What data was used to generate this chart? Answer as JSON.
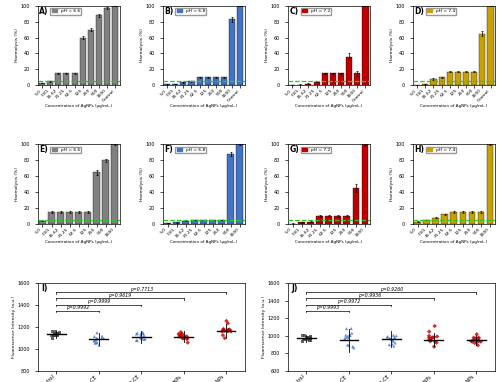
{
  "bar_categories": [
    "5.0",
    "7.81",
    "15.62",
    "31.25",
    "62.5",
    "125",
    "250",
    "500",
    "1000",
    "Control"
  ],
  "panel_A": {
    "label": "pH = 6.6",
    "color": "#808080",
    "values": [
      3.0,
      5.0,
      15.0,
      15.0,
      15.0,
      60.0,
      70.0,
      88.0,
      97.0,
      100.0
    ],
    "errors": [
      0.3,
      0.5,
      0.8,
      0.8,
      0.8,
      2.0,
      2.0,
      2.0,
      1.0,
      0.5
    ],
    "n_bars": 10
  },
  "panel_B": {
    "label": "pH = 6.8",
    "color": "#4472C4",
    "values": [
      1.0,
      1.5,
      3.5,
      5.0,
      10.0,
      10.0,
      10.0,
      10.0,
      83.0,
      100.0
    ],
    "errors": [
      0.2,
      0.3,
      0.5,
      0.8,
      0.5,
      0.5,
      0.5,
      0.5,
      3.0,
      0.5
    ],
    "n_bars": 10
  },
  "panel_C": {
    "label": "pH = 7.2",
    "color": "#C00000",
    "values": [
      0.5,
      0.8,
      2.0,
      4.0,
      15.0,
      15.0,
      15.0,
      35.0,
      15.0,
      100.0
    ],
    "errors": [
      0.1,
      0.2,
      0.3,
      0.5,
      0.8,
      0.8,
      0.8,
      5.0,
      3.0,
      0.5
    ],
    "n_bars": 10
  },
  "panel_D": {
    "label": "pH = 7.4",
    "color": "#C8A000",
    "values": [
      0.5,
      1.0,
      8.0,
      10.0,
      17.0,
      17.0,
      17.0,
      17.0,
      65.0,
      100.0
    ],
    "errors": [
      0.2,
      0.3,
      0.8,
      0.8,
      0.8,
      0.8,
      0.8,
      0.8,
      3.0,
      0.5
    ],
    "n_bars": 10
  },
  "panel_E": {
    "label": "pH = 6.6",
    "color": "#808080",
    "values": [
      4.0,
      15.0,
      15.0,
      15.0,
      15.0,
      15.0,
      65.0,
      80.0,
      100.0
    ],
    "errors": [
      0.5,
      0.8,
      0.8,
      0.8,
      0.8,
      0.8,
      3.0,
      2.0,
      1.0
    ],
    "n_bars": 9,
    "cats": [
      "5.0",
      "7.81",
      "15.62",
      "31.25",
      "62.5",
      "125",
      "250",
      "500",
      "1000"
    ]
  },
  "panel_F": {
    "label": "pH = 6.8",
    "color": "#4472C4",
    "values": [
      1.0,
      2.0,
      4.0,
      5.0,
      5.0,
      5.0,
      5.0,
      88.0,
      100.0
    ],
    "errors": [
      0.2,
      0.5,
      0.5,
      0.5,
      0.5,
      0.5,
      0.5,
      3.0,
      1.0
    ],
    "n_bars": 9,
    "cats": [
      "5.0",
      "7.81",
      "15.62",
      "31.25",
      "62.5",
      "125",
      "250",
      "500",
      "1000"
    ]
  },
  "panel_G": {
    "label": "pH = 7.2",
    "color": "#C00000",
    "values": [
      0.5,
      2.0,
      3.0,
      10.0,
      10.0,
      10.0,
      10.0,
      45.0,
      100.0
    ],
    "errors": [
      0.2,
      0.5,
      0.5,
      0.8,
      0.8,
      0.8,
      0.8,
      5.0,
      1.0
    ],
    "n_bars": 9,
    "cats": [
      "5.0",
      "7.81",
      "15.62",
      "31.25",
      "62.5",
      "125",
      "250",
      "500",
      "1000"
    ]
  },
  "panel_H": {
    "label": "pH = 7.4",
    "color": "#C8A000",
    "values": [
      3.0,
      5.0,
      8.0,
      12.0,
      15.0,
      15.0,
      15.0,
      15.0,
      100.0
    ],
    "errors": [
      0.5,
      0.5,
      0.8,
      0.8,
      0.8,
      0.8,
      0.8,
      0.8,
      1.0
    ],
    "n_bars": 9,
    "cats": [
      "5.0",
      "7.81",
      "15.62",
      "31.25",
      "62.5",
      "125",
      "250",
      "500",
      "1000"
    ]
  },
  "scatter_I": {
    "p_values": [
      "p=0.9992",
      "p=0.9999",
      "p=0.9619",
      "p=0.7713"
    ],
    "groups": [
      "Control",
      "AIL-CE",
      "AIB-CE",
      "AIL-AgNPs",
      "AIB-AgNPs"
    ],
    "colors": [
      "#404040",
      "#4472C4",
      "#4472C4",
      "#C00000",
      "#C00000"
    ],
    "markers": [
      "s",
      "^",
      "^",
      "D",
      "D"
    ],
    "means": [
      1130,
      1090,
      1110,
      1110,
      1165
    ],
    "stds": [
      35,
      55,
      55,
      50,
      65
    ],
    "ylim": [
      800,
      1600
    ],
    "yticks": [
      800,
      1000,
      1200,
      1400,
      1600
    ]
  },
  "scatter_J": {
    "p_values": [
      "p=0.9993",
      "p=0.9972",
      "p=0.9936",
      "p=0.9260"
    ],
    "groups": [
      "Control",
      "AIL-CE",
      "AIB-CE",
      "AIL-AgNPs",
      "AIB-AgNPs"
    ],
    "colors": [
      "#404040",
      "#4472C4",
      "#4472C4",
      "#C00000",
      "#C00000"
    ],
    "markers": [
      "s",
      "^",
      "^",
      "D",
      "D"
    ],
    "means": [
      970,
      945,
      960,
      950,
      950
    ],
    "stds": [
      40,
      130,
      95,
      75,
      55
    ],
    "ylim": [
      600,
      1600
    ],
    "yticks": [
      600,
      800,
      1000,
      1200,
      1400,
      1600
    ]
  },
  "cutoff_line": 5.0,
  "cutoff_color": "#22CC22",
  "bar_ylim": [
    0,
    100
  ],
  "bar_yticks": [
    0,
    20,
    40,
    60,
    80,
    100
  ],
  "xlabel": "Concentration of AgNPs (μg/mL.)",
  "ylabel_haemo": "Haemolysis (%)",
  "ylabel_fluor": "Fluorescence Intensity (a.u.)"
}
